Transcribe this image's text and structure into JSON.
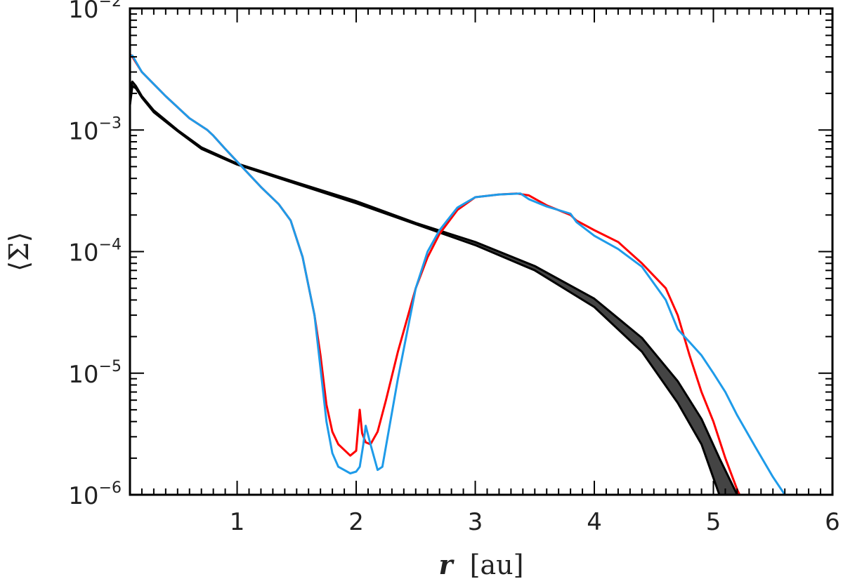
{
  "chart_data": {
    "type": "line",
    "title": "",
    "xlabel": {
      "var": "r",
      "unit": "[au]"
    },
    "ylabel": "⟨Σ⟩",
    "xlim": [
      0.1,
      6
    ],
    "ylim": [
      1e-06,
      0.01
    ],
    "yscale": "log",
    "grid": false,
    "x_ticks": [
      {
        "value": 1,
        "label": "1"
      },
      {
        "value": 2,
        "label": "2"
      },
      {
        "value": 3,
        "label": "3"
      },
      {
        "value": 4,
        "label": "4"
      },
      {
        "value": 5,
        "label": "5"
      },
      {
        "value": 6,
        "label": "6"
      }
    ],
    "y_ticks": [
      {
        "value": 1e-06,
        "base": "10",
        "exp": "−6"
      },
      {
        "value": 1e-05,
        "base": "10",
        "exp": "−5"
      },
      {
        "value": 0.0001,
        "base": "10",
        "exp": "−4"
      },
      {
        "value": 0.001,
        "base": "10",
        "exp": "−3"
      },
      {
        "value": 0.01,
        "base": "10",
        "exp": "−2"
      }
    ],
    "band": {
      "color": "#444444",
      "x": [
        0.1,
        0.12,
        0.15,
        0.2,
        0.3,
        0.5,
        0.7,
        1.0,
        1.5,
        2.0,
        2.5,
        3.0,
        3.5,
        4.0,
        4.4,
        4.7,
        4.9,
        5.05,
        5.2
      ],
      "upper": [
        0.0021,
        0.0025,
        0.0023,
        0.0019,
        0.00145,
        0.001,
        0.00072,
        0.00053,
        0.00037,
        0.00026,
        0.000172,
        0.00012,
        7.6e-05,
        4.1e-05,
        1.95e-05,
        8.6e-06,
        4.2e-06,
        2e-06,
        1e-06
      ],
      "lower": [
        0.0016,
        0.0023,
        0.0022,
        0.00185,
        0.0014,
        0.00098,
        0.0007,
        0.00052,
        0.00036,
        0.00025,
        0.000168,
        0.000113,
        7e-05,
        3.5e-05,
        1.5e-05,
        5.7e-06,
        2.6e-06,
        1e-06,
        1e-06
      ]
    },
    "series": [
      {
        "color": "#ff0000",
        "x": [
          0.1,
          0.12,
          0.2,
          0.4,
          0.6,
          0.75,
          0.8,
          0.9,
          1.0,
          1.2,
          1.35,
          1.45,
          1.55,
          1.65,
          1.7,
          1.75,
          1.8,
          1.85,
          1.95,
          2.0,
          2.03,
          2.05,
          2.08,
          2.12,
          2.18,
          2.25,
          2.35,
          2.5,
          2.6,
          2.7,
          2.85,
          3.0,
          3.2,
          3.35,
          3.45,
          3.6,
          3.8,
          3.85,
          4.0,
          4.2,
          4.4,
          4.6,
          4.7,
          4.8,
          4.9,
          5.0,
          5.1,
          5.2,
          5.22
        ],
        "y": [
          0.0042,
          0.004,
          0.003,
          0.0019,
          0.00125,
          0.001,
          0.0009,
          0.0007,
          0.00055,
          0.00034,
          0.000245,
          0.00018,
          9e-05,
          3e-05,
          1.4e-05,
          5.5e-06,
          3.3e-06,
          2.6e-06,
          2.1e-06,
          2.3e-06,
          5e-06,
          3.2e-06,
          2.7e-06,
          2.6e-06,
          3.3e-06,
          6e-06,
          1.5e-05,
          5e-05,
          9e-05,
          0.00014,
          0.00022,
          0.00028,
          0.000295,
          0.0003,
          0.00029,
          0.00024,
          0.0002,
          0.00018,
          0.00015,
          0.00012,
          8e-05,
          5e-05,
          3e-05,
          1.4e-05,
          7e-06,
          4e-06,
          2e-06,
          1.1e-06,
          1e-06
        ]
      },
      {
        "color": "#1e9be9",
        "x": [
          0.1,
          0.12,
          0.2,
          0.4,
          0.6,
          0.75,
          0.8,
          0.9,
          1.0,
          1.2,
          1.35,
          1.45,
          1.55,
          1.65,
          1.7,
          1.75,
          1.8,
          1.85,
          1.95,
          2.0,
          2.03,
          2.06,
          2.08,
          2.12,
          2.18,
          2.22,
          2.35,
          2.5,
          2.6,
          2.7,
          2.85,
          3.0,
          3.2,
          3.38,
          3.45,
          3.6,
          3.8,
          3.85,
          4.0,
          4.2,
          4.4,
          4.6,
          4.7,
          4.8,
          4.9,
          5.0,
          5.1,
          5.2,
          5.35,
          5.5,
          5.6
        ],
        "y": [
          0.004,
          0.0041,
          0.003,
          0.0019,
          0.00125,
          0.001,
          0.0009,
          0.0007,
          0.00055,
          0.00034,
          0.000245,
          0.00018,
          9e-05,
          3e-05,
          1.1e-05,
          4e-06,
          2.2e-06,
          1.7e-06,
          1.5e-06,
          1.55e-06,
          1.7e-06,
          2.6e-06,
          3.7e-06,
          2.6e-06,
          1.6e-06,
          1.7e-06,
          9e-06,
          5e-05,
          0.0001,
          0.00015,
          0.00023,
          0.00028,
          0.000295,
          0.0003,
          0.00027,
          0.000235,
          0.000205,
          0.000175,
          0.000135,
          0.000105,
          7.5e-05,
          4e-05,
          2.3e-05,
          1.8e-05,
          1.4e-05,
          1e-05,
          7e-06,
          4.5e-06,
          2.5e-06,
          1.4e-06,
          1e-06
        ]
      }
    ]
  }
}
